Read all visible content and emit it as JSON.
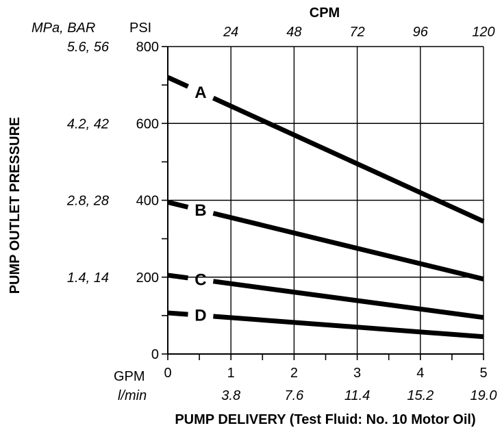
{
  "chart_data": {
    "type": "line",
    "title": "",
    "xlabel": "PUMP DELIVERY (Test Fluid: No. 10 Motor Oil)",
    "ylabel": "PUMP OUTLET PRESSURE",
    "top_axis_label": "CPM",
    "top_ticks": [
      "24",
      "48",
      "72",
      "96",
      "120"
    ],
    "y_units_label_left": "MPa, BAR",
    "y_units_label": "PSI",
    "y_ticks": [
      "0",
      "200",
      "400",
      "600",
      "800"
    ],
    "y_ticks_metric": [
      "1.4, 14",
      "2.8, 28",
      "4.2, 42",
      "5.6, 56"
    ],
    "x_units_label": "GPM",
    "x_units_label_metric": "l/min",
    "x_ticks": [
      "0",
      "1",
      "2",
      "3",
      "4",
      "5"
    ],
    "x_ticks_metric": [
      "3.8",
      "7.6",
      "11.4",
      "15.2",
      "19.0"
    ],
    "xlim": [
      0,
      5
    ],
    "ylim": [
      0,
      800
    ],
    "grid": true,
    "series": [
      {
        "name": "A",
        "x": [
          0,
          5
        ],
        "values": [
          720,
          345
        ]
      },
      {
        "name": "B",
        "x": [
          0,
          5
        ],
        "values": [
          395,
          195
        ]
      },
      {
        "name": "C",
        "x": [
          0,
          5
        ],
        "values": [
          205,
          95
        ]
      },
      {
        "name": "D",
        "x": [
          0,
          5
        ],
        "values": [
          107,
          45
        ]
      }
    ]
  }
}
